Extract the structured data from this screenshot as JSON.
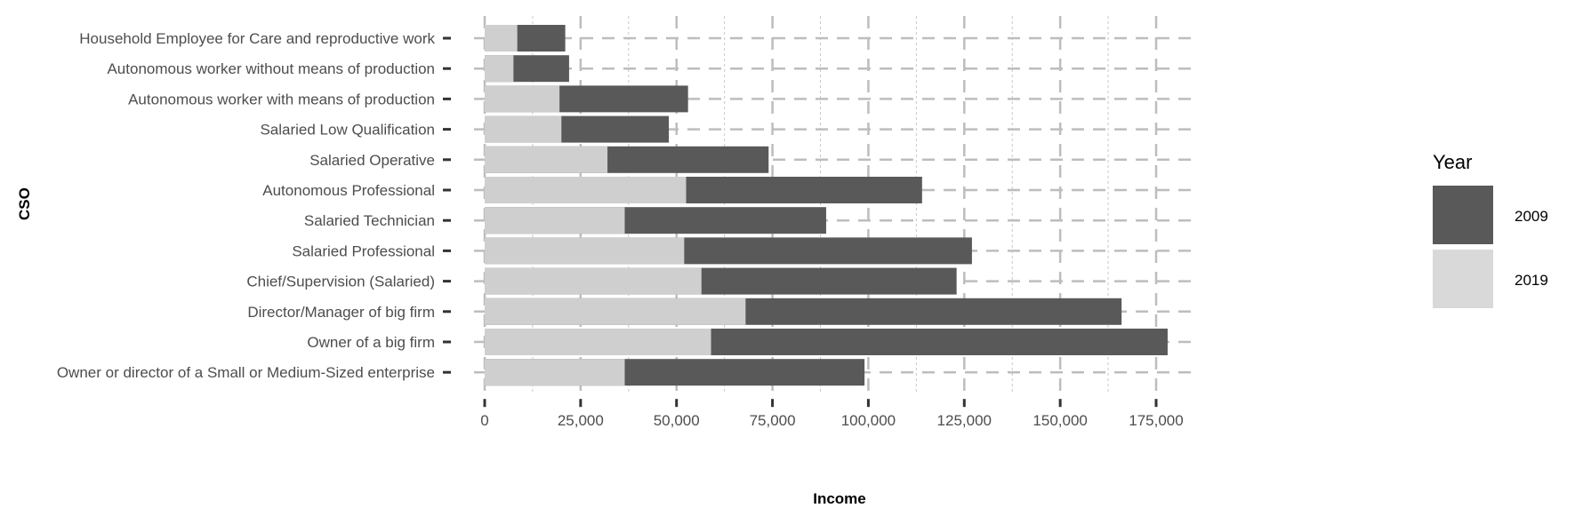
{
  "chart_data": {
    "type": "bar",
    "orientation": "horizontal",
    "stacking": "overlay",
    "xlabel": "Income",
    "ylabel": "CSO",
    "xlim": [
      0,
      182000
    ],
    "xticks": [
      0,
      25000,
      50000,
      75000,
      100000,
      125000,
      150000,
      175000
    ],
    "xtick_labels": [
      "0",
      "25,000",
      "50,000",
      "75,000",
      "100,000",
      "125,000",
      "150,000",
      "175,000"
    ],
    "grid": true,
    "legend_position": "right",
    "categories": [
      "Household Employee for Care and reproductive work",
      "Autonomous worker without means of production",
      "Autonomous worker with means of production",
      "Salaried Low Qualification",
      "Salaried Operative",
      "Autonomous Professional",
      "Salaried Technician",
      "Salaried Professional",
      "Chief/Supervision (Salaried)",
      "Director/Manager of big firm",
      "Owner of a big firm",
      "Owner or director of a Small or Medium-Sized enterprise"
    ],
    "series": [
      {
        "name": "2009",
        "color": "#595959",
        "values": [
          21000,
          22000,
          53000,
          48000,
          74000,
          114000,
          89000,
          127000,
          123000,
          166000,
          178000,
          99000
        ]
      },
      {
        "name": "2019",
        "color": "#d9d9d9",
        "values": [
          8500,
          7500,
          19500,
          20000,
          32000,
          52500,
          36500,
          52000,
          56500,
          68000,
          59000,
          36500
        ]
      }
    ],
    "legend": {
      "title": "Year",
      "items": [
        {
          "label": "2009",
          "color": "#595959"
        },
        {
          "label": "2019",
          "color": "#d9d9d9"
        }
      ]
    }
  }
}
